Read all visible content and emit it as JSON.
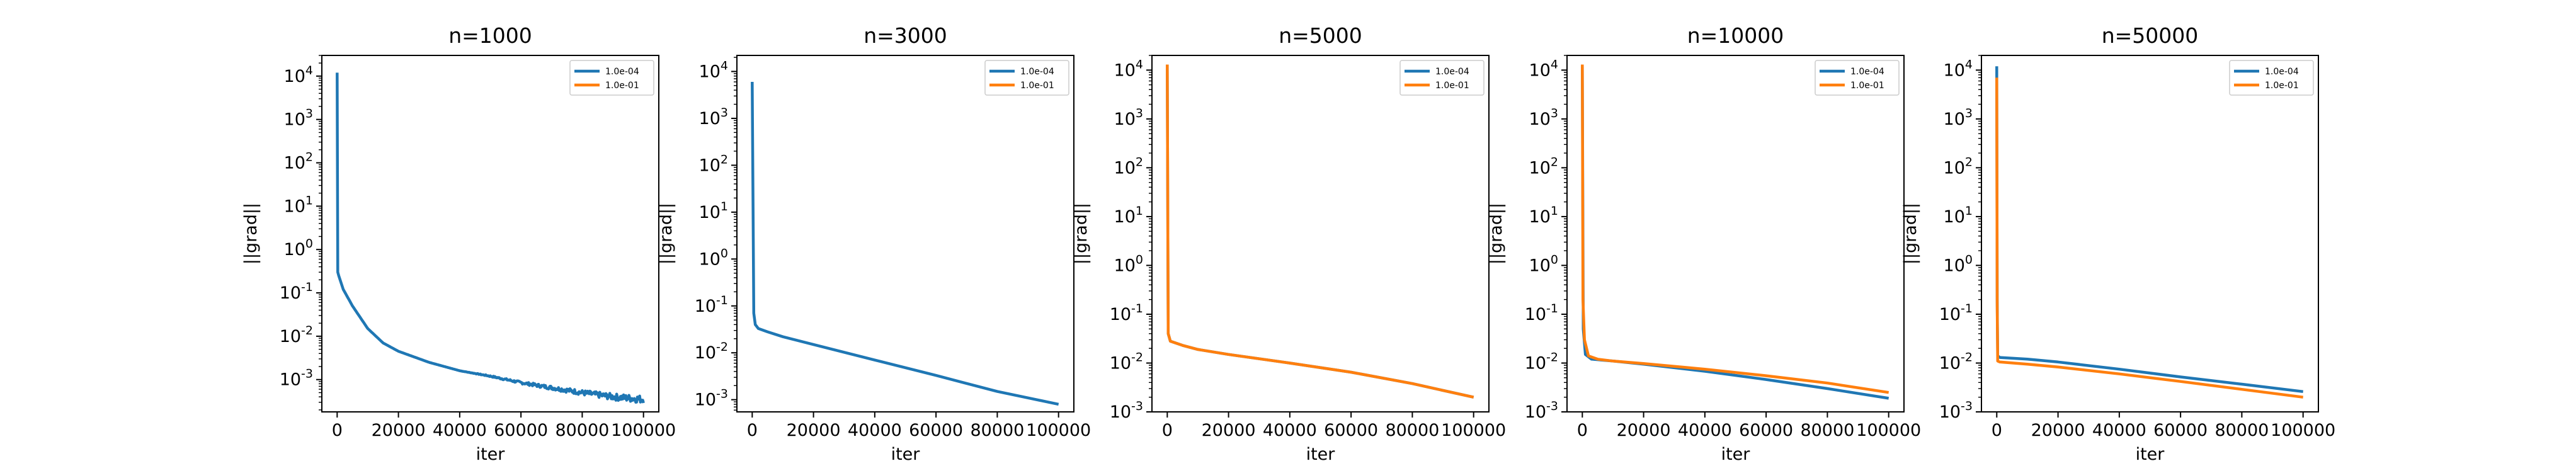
{
  "colors": {
    "series_1": "#1f77b4",
    "series_2": "#ff7f0e"
  },
  "chart_data": [
    {
      "type": "line",
      "title": "n=1000",
      "xlabel": "iter",
      "ylabel": "||grad||",
      "yscale": "log",
      "xlim": [
        -5000,
        105000
      ],
      "ylim": [
        0.00018,
        30000
      ],
      "xticks": [
        0,
        20000,
        40000,
        60000,
        80000,
        100000
      ],
      "xtick_labels": [
        "0",
        "20000",
        "40000",
        "60000",
        "80000",
        "100000"
      ],
      "yticks": [
        0.001,
        0.01,
        0.1,
        1,
        10,
        100,
        1000,
        10000
      ],
      "legend": {
        "entries": [
          "1.0e-04",
          "1.0e-01"
        ],
        "position": "top-right"
      },
      "series": [
        {
          "name": "1.0e-04",
          "color": "#1f77b4",
          "noise": 0.18,
          "x": [
            0,
            200,
            500,
            2000,
            5000,
            10000,
            15000,
            20000,
            30000,
            40000,
            50000,
            60000,
            70000,
            80000,
            90000,
            100000
          ],
          "y": [
            12000,
            0.3,
            0.25,
            0.12,
            0.05,
            0.015,
            0.007,
            0.0045,
            0.0025,
            0.0016,
            0.0012,
            0.00085,
            0.00065,
            0.0005,
            0.0004,
            0.00035
          ]
        }
      ]
    },
    {
      "type": "line",
      "title": "n=3000",
      "xlabel": "iter",
      "ylabel": "||grad||",
      "yscale": "log",
      "xlim": [
        -5000,
        105000
      ],
      "ylim": [
        0.00055,
        22000
      ],
      "xticks": [
        0,
        20000,
        40000,
        60000,
        80000,
        100000
      ],
      "xtick_labels": [
        "0",
        "20000",
        "40000",
        "60000",
        "80000",
        "100000"
      ],
      "yticks": [
        0.001,
        0.01,
        0.1,
        1,
        10,
        100,
        1000,
        10000
      ],
      "legend": {
        "entries": [
          "1.0e-04",
          "1.0e-01"
        ],
        "position": "top-right"
      },
      "series": [
        {
          "name": "1.0e-04",
          "color": "#1f77b4",
          "x": [
            0,
            500,
            1000,
            2000,
            5000,
            10000,
            20000,
            40000,
            60000,
            80000,
            100000
          ],
          "y": [
            6000,
            0.07,
            0.04,
            0.033,
            0.028,
            0.022,
            0.015,
            0.007,
            0.0033,
            0.0015,
            0.0008
          ]
        }
      ]
    },
    {
      "type": "line",
      "title": "n=5000",
      "xlabel": "iter",
      "ylabel": "||grad||",
      "yscale": "log",
      "xlim": [
        -5000,
        105000
      ],
      "ylim": [
        0.001,
        20000
      ],
      "xticks": [
        0,
        20000,
        40000,
        60000,
        80000,
        100000
      ],
      "xtick_labels": [
        "0",
        "20000",
        "40000",
        "60000",
        "80000",
        "100000"
      ],
      "yticks": [
        0.001,
        0.01,
        0.1,
        1,
        10,
        100,
        1000,
        10000
      ],
      "legend": {
        "entries": [
          "1.0e-04",
          "1.0e-01"
        ],
        "position": "top-right"
      },
      "series": [
        {
          "name": "1.0e-04",
          "color": "#1f77b4",
          "x": [
            0,
            300,
            1000,
            5000,
            10000,
            20000,
            40000,
            60000,
            80000,
            100000
          ],
          "y": [
            13000,
            0.04,
            0.028,
            0.023,
            0.019,
            0.015,
            0.01,
            0.0065,
            0.0038,
            0.002
          ]
        },
        {
          "name": "1.0e-01",
          "color": "#ff7f0e",
          "x": [
            0,
            300,
            1000,
            5000,
            10000,
            20000,
            40000,
            60000,
            80000,
            100000
          ],
          "y": [
            13000,
            0.04,
            0.028,
            0.023,
            0.019,
            0.015,
            0.01,
            0.0065,
            0.0038,
            0.002
          ]
        }
      ]
    },
    {
      "type": "line",
      "title": "n=10000",
      "xlabel": "iter",
      "ylabel": "||grad||",
      "yscale": "log",
      "xlim": [
        -5000,
        105000
      ],
      "ylim": [
        0.001,
        20000
      ],
      "xticks": [
        0,
        20000,
        40000,
        60000,
        80000,
        100000
      ],
      "xtick_labels": [
        "0",
        "20000",
        "40000",
        "60000",
        "80000",
        "100000"
      ],
      "yticks": [
        0.001,
        0.01,
        0.1,
        1,
        10,
        100,
        1000,
        10000
      ],
      "legend": {
        "entries": [
          "1.0e-04",
          "1.0e-01"
        ],
        "position": "top-right"
      },
      "series": [
        {
          "name": "1.0e-04",
          "color": "#1f77b4",
          "x": [
            0,
            300,
            1000,
            3000,
            10000,
            20000,
            40000,
            60000,
            80000,
            100000
          ],
          "y": [
            12000,
            0.05,
            0.015,
            0.012,
            0.011,
            0.0095,
            0.0068,
            0.0046,
            0.003,
            0.0019
          ]
        },
        {
          "name": "1.0e-01",
          "color": "#ff7f0e",
          "x": [
            0,
            200,
            700,
            2000,
            5000,
            10000,
            20000,
            40000,
            60000,
            80000,
            100000
          ],
          "y": [
            13000,
            0.2,
            0.03,
            0.014,
            0.012,
            0.011,
            0.0098,
            0.0075,
            0.0055,
            0.0039,
            0.0025
          ]
        }
      ]
    },
    {
      "type": "line",
      "title": "n=50000",
      "xlabel": "iter",
      "ylabel": "||grad||",
      "yscale": "log",
      "xlim": [
        -5000,
        105000
      ],
      "ylim": [
        0.001,
        20000
      ],
      "xticks": [
        0,
        20000,
        40000,
        60000,
        80000,
        100000
      ],
      "xtick_labels": [
        "0",
        "20000",
        "40000",
        "60000",
        "80000",
        "100000"
      ],
      "yticks": [
        0.001,
        0.01,
        0.1,
        1,
        10,
        100,
        1000,
        10000
      ],
      "legend": {
        "entries": [
          "1.0e-04",
          "1.0e-01"
        ],
        "position": "top-right"
      },
      "series": [
        {
          "name": "1.0e-04",
          "color": "#1f77b4",
          "x": [
            0,
            150,
            300,
            1000,
            10000,
            20000,
            40000,
            60000,
            80000,
            100000
          ],
          "y": [
            12000,
            0.2,
            0.014,
            0.013,
            0.012,
            0.0105,
            0.0075,
            0.0052,
            0.0037,
            0.0026
          ]
        },
        {
          "name": "1.0e-01",
          "color": "#ff7f0e",
          "x": [
            0,
            150,
            300,
            1000,
            10000,
            20000,
            40000,
            60000,
            80000,
            100000
          ],
          "y": [
            7000,
            0.15,
            0.011,
            0.0105,
            0.0095,
            0.0083,
            0.006,
            0.0042,
            0.0029,
            0.002
          ]
        }
      ]
    }
  ]
}
